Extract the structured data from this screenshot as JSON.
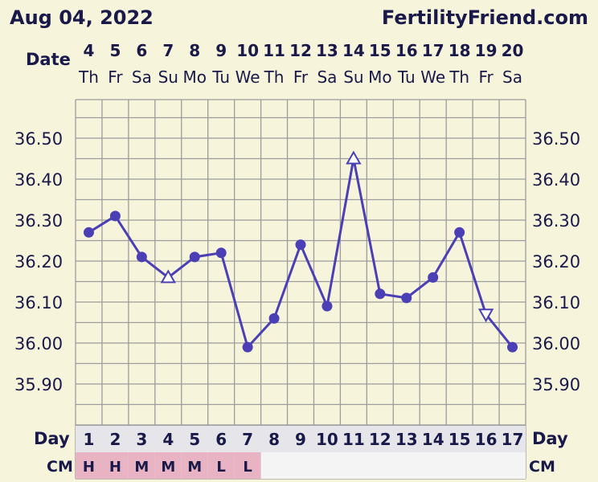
{
  "header": {
    "date_title": "Aug 04, 2022",
    "site": "FertilityFriend.com"
  },
  "labels": {
    "date": "Date",
    "day": "Day",
    "cm": "CM"
  },
  "colors": {
    "background": "#f7f4dc",
    "line": "#4a3fb5",
    "grid": "#9c9c9c",
    "cm_fill": "#e8b4c4",
    "row_fill": "#e6e6ea"
  },
  "chart_data": {
    "type": "line",
    "dates": [
      "4",
      "5",
      "6",
      "7",
      "8",
      "9",
      "10",
      "11",
      "12",
      "13",
      "14",
      "15",
      "16",
      "17",
      "18",
      "19",
      "20"
    ],
    "weekdays": [
      "Th",
      "Fr",
      "Sa",
      "Su",
      "Mo",
      "Tu",
      "We",
      "Th",
      "Fr",
      "Sa",
      "Su",
      "Mo",
      "Tu",
      "We",
      "Th",
      "Fr",
      "Sa"
    ],
    "cycle_days": [
      "1",
      "2",
      "3",
      "4",
      "5",
      "6",
      "7",
      "8",
      "9",
      "10",
      "11",
      "12",
      "13",
      "14",
      "15",
      "16",
      "17"
    ],
    "cm": [
      "H",
      "H",
      "M",
      "M",
      "M",
      "L",
      "L",
      "",
      "",
      "",
      "",
      "",
      "",
      "",
      "",
      "",
      ""
    ],
    "temperatures": [
      36.27,
      36.31,
      36.21,
      36.16,
      36.21,
      36.22,
      35.99,
      36.06,
      36.24,
      36.09,
      36.45,
      36.12,
      36.11,
      36.16,
      36.27,
      36.07,
      35.99
    ],
    "markers": [
      "circle",
      "circle",
      "circle",
      "triangle-up",
      "circle",
      "circle",
      "circle",
      "circle",
      "circle",
      "circle",
      "triangle-up",
      "circle",
      "circle",
      "circle",
      "circle",
      "triangle-down",
      "circle"
    ],
    "yticks": [
      "36.50",
      "36.40",
      "36.30",
      "36.20",
      "36.10",
      "36.00",
      "35.90"
    ],
    "ylim": [
      35.8,
      36.6
    ]
  }
}
